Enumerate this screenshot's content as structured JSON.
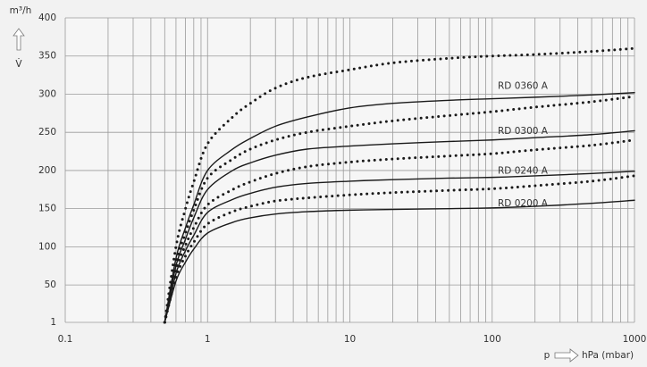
{
  "chart_data": {
    "type": "line",
    "y_unit_label": "m³/h",
    "y_label": "V̇",
    "x_symbol": "p",
    "x_unit_label": "hPa (mbar)",
    "log_x": true,
    "grid": true,
    "xlim": [
      0.1,
      1000
    ],
    "xticks": [
      0.1,
      1,
      10,
      100,
      1000
    ],
    "minor_xticks": [
      0.2,
      0.3,
      0.4,
      0.5,
      0.6,
      0.7,
      0.8,
      0.9,
      2,
      3,
      4,
      5,
      6,
      7,
      8,
      9,
      20,
      30,
      40,
      50,
      60,
      70,
      80,
      90,
      200,
      300,
      400,
      500,
      600,
      700,
      800,
      900
    ],
    "ylim": [
      1,
      400
    ],
    "yticks": [
      1,
      50,
      100,
      150,
      200,
      250,
      300,
      350,
      400
    ],
    "x": [
      0.5,
      0.6,
      0.7,
      0.8,
      1,
      1.5,
      2,
      3,
      5,
      10,
      20,
      50,
      100,
      200,
      500,
      1000
    ],
    "color": "#1a1a1a",
    "series": [
      {
        "name": "RD 0360 A",
        "values": [
          1,
          85,
          125,
          155,
          200,
          228,
          242,
          258,
          270,
          282,
          288,
          292,
          294,
          296,
          299,
          302
        ],
        "values_dotted": [
          1,
          100,
          150,
          185,
          235,
          270,
          288,
          308,
          322,
          332,
          341,
          347,
          350,
          352,
          356,
          360
        ]
      },
      {
        "name": "RD 0300 A",
        "values": [
          1,
          75,
          110,
          138,
          175,
          200,
          210,
          220,
          228,
          232,
          235,
          238,
          240,
          243,
          247,
          252
        ],
        "values_dotted": [
          1,
          80,
          118,
          148,
          190,
          215,
          228,
          240,
          250,
          258,
          265,
          272,
          277,
          283,
          290,
          297
        ]
      },
      {
        "name": "RD 0240 A",
        "values": [
          1,
          65,
          95,
          115,
          145,
          162,
          170,
          178,
          183,
          186,
          188,
          190,
          191,
          193,
          196,
          199
        ],
        "values_dotted": [
          1,
          70,
          102,
          125,
          155,
          175,
          185,
          196,
          205,
          211,
          215,
          219,
          222,
          227,
          233,
          240
        ]
      },
      {
        "name": "RD 0200 A",
        "values": [
          1,
          55,
          80,
          97,
          118,
          132,
          138,
          143,
          146,
          148,
          149,
          150,
          151,
          153,
          157,
          161
        ],
        "values_dotted": [
          1,
          60,
          88,
          106,
          130,
          146,
          153,
          160,
          164,
          168,
          171,
          174,
          176,
          180,
          186,
          193
        ]
      }
    ]
  }
}
